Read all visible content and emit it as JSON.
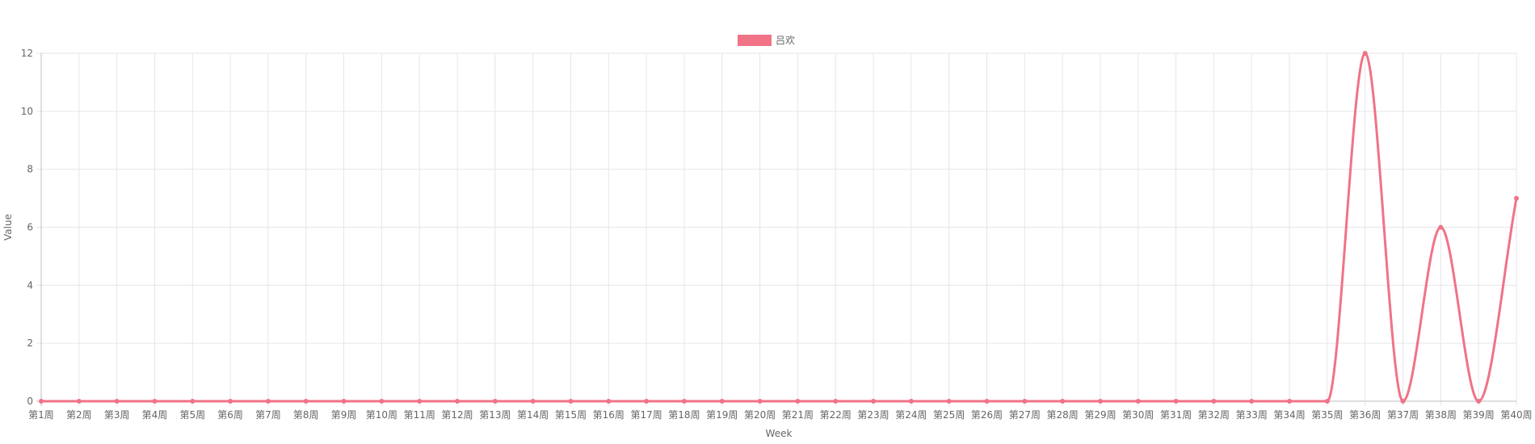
{
  "chart_data": {
    "type": "line",
    "categories": [
      "第1周",
      "第2周",
      "第3周",
      "第4周",
      "第5周",
      "第6周",
      "第7周",
      "第8周",
      "第9周",
      "第10周",
      "第11周",
      "第12周",
      "第13周",
      "第14周",
      "第15周",
      "第16周",
      "第17周",
      "第18周",
      "第19周",
      "第20周",
      "第21周",
      "第22周",
      "第23周",
      "第24周",
      "第25周",
      "第26周",
      "第27周",
      "第28周",
      "第29周",
      "第30周",
      "第31周",
      "第32周",
      "第33周",
      "第34周",
      "第35周",
      "第36周",
      "第37周",
      "第38周",
      "第39周",
      "第40周"
    ],
    "series": [
      {
        "name": "吕欢",
        "color": "#f07386",
        "values": [
          0,
          0,
          0,
          0,
          0,
          0,
          0,
          0,
          0,
          0,
          0,
          0,
          0,
          0,
          0,
          0,
          0,
          0,
          0,
          0,
          0,
          0,
          0,
          0,
          0,
          0,
          0,
          0,
          0,
          0,
          0,
          0,
          0,
          0,
          0,
          12,
          0,
          6,
          0,
          7
        ]
      }
    ],
    "xlabel": "Week",
    "ylabel": "Value",
    "ylim": [
      0,
      12
    ],
    "yticks": [
      0,
      2,
      4,
      6,
      8,
      10,
      12
    ],
    "grid": true,
    "legend_position": "top-center"
  }
}
